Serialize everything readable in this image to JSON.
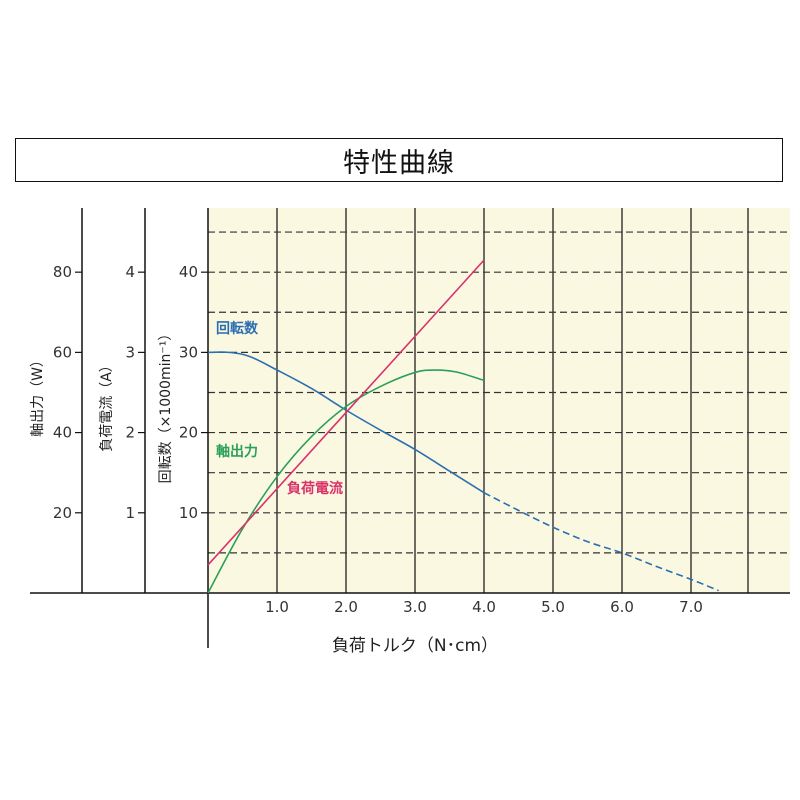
{
  "title": "特性曲線",
  "chart_data": {
    "type": "line",
    "title": "特性曲線",
    "xlabel": "負荷トルク（N･cm）",
    "xlim": [
      0,
      8
    ],
    "x_ticks": [
      "1.0",
      "2.0",
      "3.0",
      "4.0",
      "5.0",
      "6.0",
      "7.0"
    ],
    "grid": true,
    "y_axes": [
      {
        "id": "output",
        "label": "軸出力（W）",
        "ylim": [
          0,
          96
        ],
        "ticks": [
          "20",
          "40",
          "60",
          "80"
        ]
      },
      {
        "id": "current",
        "label": "負荷電流（A）",
        "ylim": [
          0,
          4.8
        ],
        "ticks": [
          "1",
          "2",
          "3",
          "4"
        ]
      },
      {
        "id": "speed",
        "label": "回転数（×1000min⁻¹）",
        "ylim": [
          0,
          48
        ],
        "ticks": [
          "10",
          "20",
          "30",
          "40"
        ]
      }
    ],
    "series": [
      {
        "name": "回転数",
        "axis": "speed",
        "color": "#2a6fb0",
        "x": [
          0,
          0.3,
          0.6,
          1.0,
          1.5,
          2.0,
          2.5,
          3.0,
          3.5,
          4.0
        ],
        "y": [
          30,
          30,
          29.5,
          27.8,
          25.5,
          22.8,
          20.3,
          17.9,
          15.2,
          12.5
        ]
      },
      {
        "name": "回転数",
        "axis": "speed",
        "color": "#2a6fb0",
        "style": "dashed",
        "x": [
          4.0,
          4.5,
          5.0,
          5.5,
          6.0,
          6.5,
          7.0,
          7.4
        ],
        "y": [
          12.5,
          10.3,
          8.2,
          6.4,
          5.0,
          3.3,
          1.7,
          0.3
        ]
      },
      {
        "name": "軸出力",
        "axis": "output",
        "color": "#2aa05a",
        "x": [
          0,
          0.5,
          1.0,
          1.5,
          2.0,
          2.5,
          3.0,
          3.3,
          3.6,
          4.0
        ],
        "y": [
          0,
          16,
          29,
          39,
          46.5,
          51.5,
          55,
          55.6,
          55.1,
          53
        ]
      },
      {
        "name": "負荷電流",
        "axis": "current",
        "color": "#d8326b",
        "x": [
          0,
          4.0
        ],
        "y": [
          0.35,
          4.15
        ]
      }
    ]
  }
}
